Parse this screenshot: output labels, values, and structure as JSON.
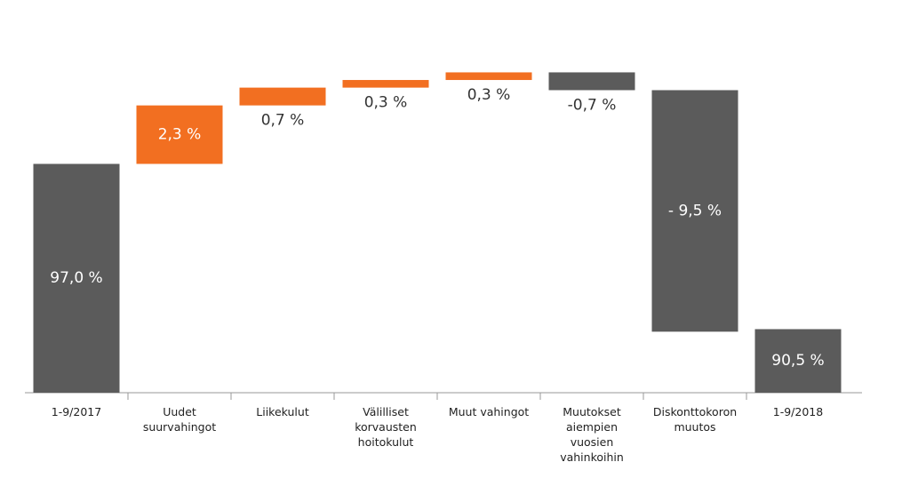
{
  "chart_data": {
    "type": "waterfall",
    "categories": [
      "1-9/2017",
      "Uudet suurvahingot",
      "Liikekulut",
      "Välilliset korvausten hoitokulut",
      "Muut vahingot",
      "Muutokset aiempien vuosien vahinkoihin",
      "Diskonttokoron muutos",
      "1-9/2018"
    ],
    "measure": [
      "total",
      "relative",
      "relative",
      "relative",
      "relative",
      "relative",
      "relative",
      "total"
    ],
    "values": [
      97.0,
      2.3,
      0.7,
      0.3,
      0.3,
      -0.7,
      -9.5,
      90.5
    ],
    "value_labels": [
      "97,0 %",
      "2,3 %",
      "0,7 %",
      "0,3 %",
      "0,3 %",
      "-0,7 %",
      "- 9,5 %",
      "90,5 %"
    ],
    "total_color": "#5b5b5b",
    "increase_color": "#f26f21",
    "decrease_color": "#5b5b5b",
    "ylim": [
      88,
      101
    ]
  }
}
